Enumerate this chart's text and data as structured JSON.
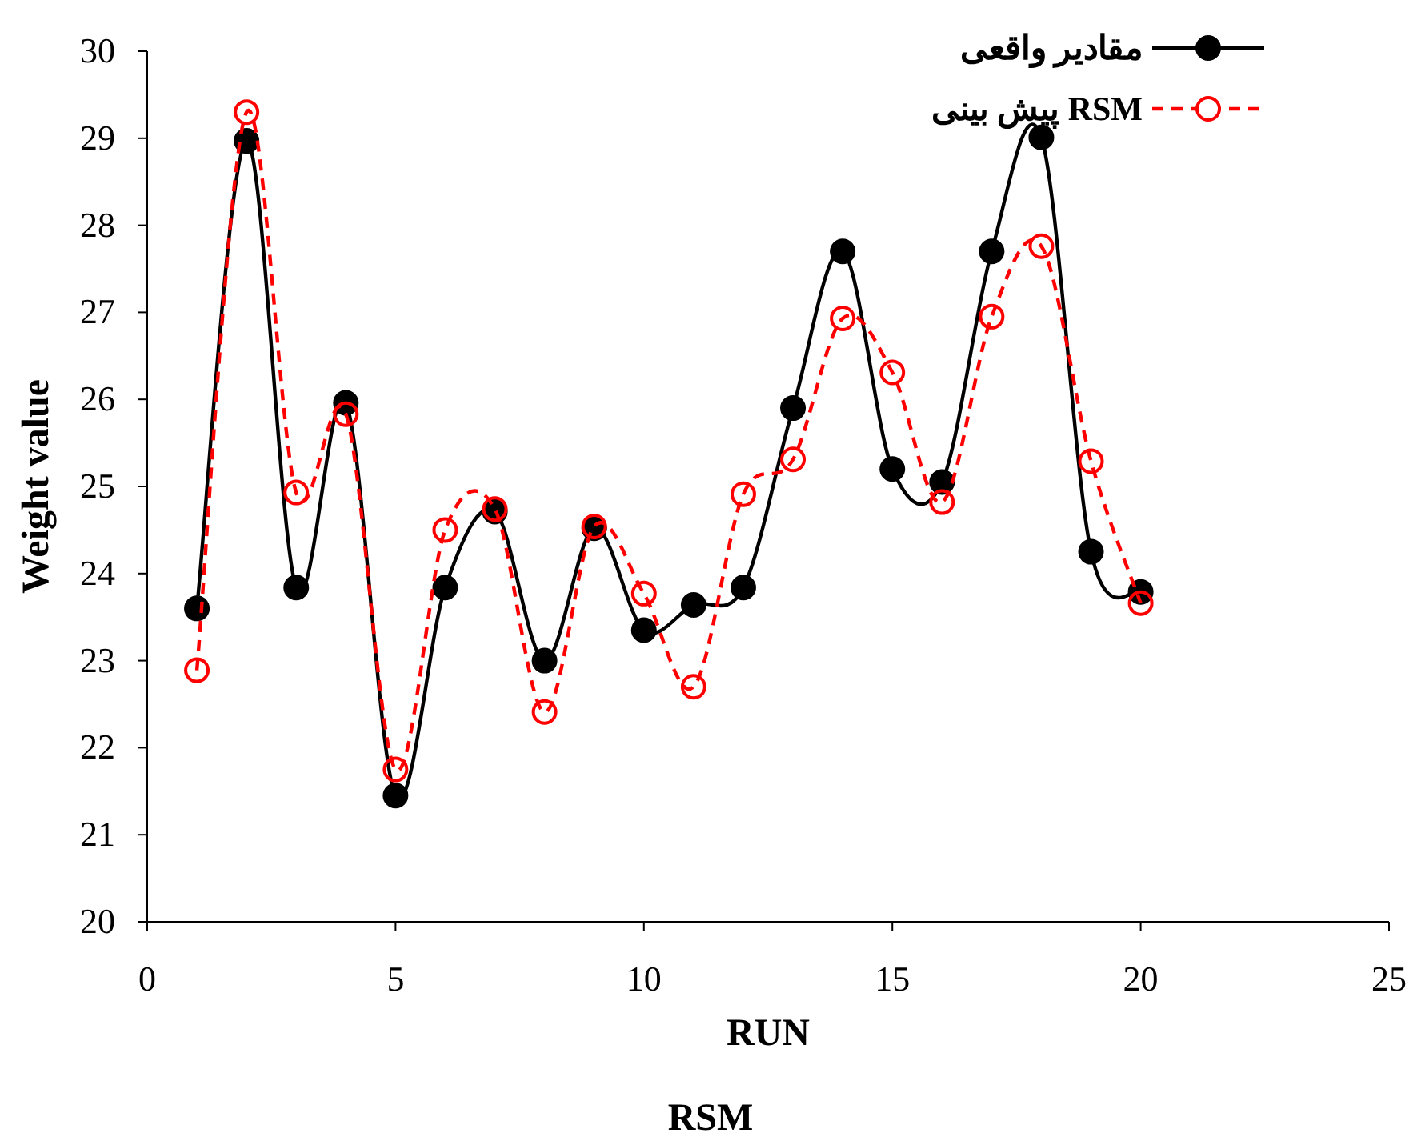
{
  "chart_data": {
    "type": "line",
    "xlabel": "RUN",
    "ylabel": "Weight value",
    "annotations": [
      "RSM"
    ],
    "x": [
      1,
      2,
      3,
      4,
      5,
      6,
      7,
      8,
      9,
      10,
      11,
      12,
      13,
      14,
      15,
      16,
      17,
      18,
      19,
      20
    ],
    "xlim": [
      0,
      25
    ],
    "xticks": [
      0,
      5,
      10,
      15,
      20,
      25
    ],
    "ylim": [
      20,
      30
    ],
    "yticks": [
      20,
      21,
      22,
      23,
      24,
      25,
      26,
      27,
      28,
      29,
      30
    ],
    "legend": "top right",
    "marker": "circle",
    "series": [
      {
        "name": "مقادیر واقعی",
        "color": "#000000",
        "line_style": "solid",
        "values": [
          23.6,
          28.97,
          23.84,
          25.96,
          21.45,
          23.84,
          24.71,
          23.0,
          24.52,
          23.35,
          23.64,
          23.84,
          25.9,
          27.7,
          25.2,
          25.05,
          27.7,
          29.01,
          24.25,
          23.79
        ]
      },
      {
        "name": "پیش بینی RSM",
        "color": "#ff0000",
        "line_style": "dashed",
        "values": [
          22.89,
          29.3,
          24.93,
          25.83,
          21.75,
          24.5,
          24.74,
          22.41,
          24.54,
          23.77,
          22.7,
          24.91,
          25.31,
          26.93,
          26.31,
          24.82,
          26.95,
          27.76,
          25.29,
          23.66
        ]
      }
    ]
  }
}
